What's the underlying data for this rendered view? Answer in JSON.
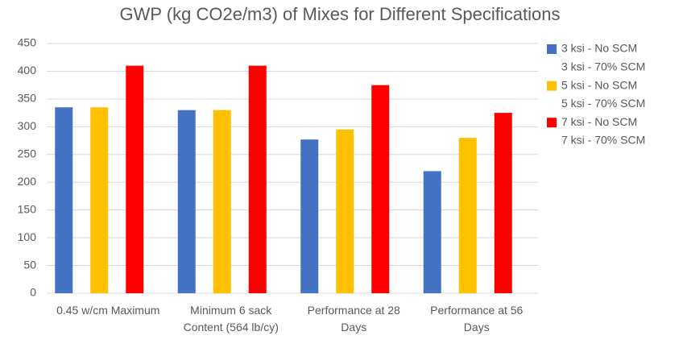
{
  "chart_data": {
    "type": "bar",
    "title": "GWP (kg CO2e/m3) of Mixes for Different Specifications",
    "categories": [
      "0.45 w/cm Maximum",
      "Minimum 6 sack Content (564 lb/cy)",
      "Performance at 28 Days",
      "Performance at 56 Days"
    ],
    "series": [
      {
        "name": "3 ksi - No SCM",
        "color": "#4472c4",
        "values": [
          335,
          330,
          277,
          220
        ]
      },
      {
        "name": "3 ksi - 70% SCM",
        "color": "#ffffff",
        "values": [
          null,
          null,
          null,
          null
        ]
      },
      {
        "name": "5 ksi - No SCM",
        "color": "#ffc000",
        "values": [
          335,
          330,
          295,
          280
        ]
      },
      {
        "name": "5 ksi - 70% SCM",
        "color": "#ffffff",
        "values": [
          null,
          null,
          null,
          null
        ]
      },
      {
        "name": "7 ksi - No SCM",
        "color": "#ff0000",
        "values": [
          410,
          410,
          375,
          325
        ]
      },
      {
        "name": "7 ksi - 70% SCM",
        "color": "#ffffff",
        "values": [
          null,
          null,
          null,
          null
        ]
      }
    ],
    "ylim": [
      0,
      450
    ],
    "yticks": [
      0,
      50,
      100,
      150,
      200,
      250,
      300,
      350,
      400,
      450
    ],
    "grid": true,
    "legend": "right"
  }
}
